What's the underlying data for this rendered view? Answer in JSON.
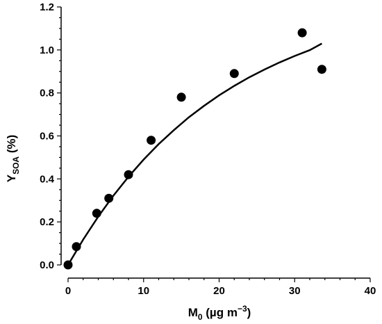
{
  "chart_data": {
    "type": "scatter",
    "title": "",
    "xlabel": {
      "main": "M",
      "sub": "0",
      "units_open": " (µg m",
      "units_sup": "−3",
      "units_close": ")"
    },
    "ylabel": {
      "main": "Y",
      "sub": "SOA",
      "units": " (%)"
    },
    "xlim": [
      0,
      40
    ],
    "ylim": [
      0,
      1.2
    ],
    "x_ticks": [
      0,
      10,
      20,
      30,
      40
    ],
    "x_tick_labels": [
      "0",
      "10",
      "20",
      "30",
      "40"
    ],
    "y_ticks": [
      0,
      0.2,
      0.4,
      0.6,
      0.8,
      1.0,
      1.2
    ],
    "y_tick_labels": [
      "0.0",
      "0.2",
      "0.4",
      "0.6",
      "0.8",
      "1.0",
      "1.2"
    ],
    "grid": false,
    "series": [
      {
        "type": "scatter",
        "color": "#000000",
        "x": [
          0,
          1.1,
          3.8,
          5.4,
          8.0,
          11.0,
          15.0,
          22.0,
          31.0,
          33.6
        ],
        "y": [
          0.0,
          0.085,
          0.24,
          0.31,
          0.42,
          0.58,
          0.78,
          0.89,
          1.08,
          0.91
        ]
      },
      {
        "type": "line",
        "color": "#000000",
        "x": [
          0,
          2,
          4,
          6,
          8,
          10,
          12,
          14,
          16,
          18,
          20,
          22,
          24,
          26,
          28,
          30,
          32,
          33.6
        ],
        "y": [
          0,
          0.118,
          0.225,
          0.322,
          0.41,
          0.49,
          0.562,
          0.627,
          0.687,
          0.74,
          0.789,
          0.833,
          0.873,
          0.909,
          0.942,
          0.972,
          0.999,
          1.03
        ]
      }
    ]
  }
}
